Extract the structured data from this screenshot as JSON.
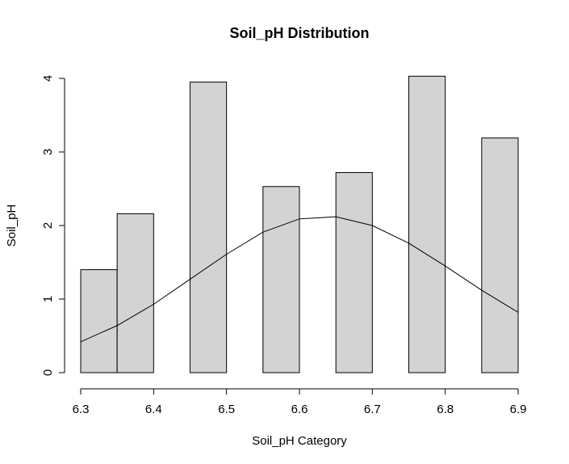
{
  "chart_data": {
    "type": "bar",
    "title": "Soil_pH Distribution",
    "xlabel": "Soil_pH Category",
    "ylabel": "Soil_pH",
    "xlim": [
      6.3,
      6.9
    ],
    "ylim": [
      0,
      4
    ],
    "x_ticks": [
      "6.3",
      "6.4",
      "6.5",
      "6.6",
      "6.7",
      "6.8",
      "6.9"
    ],
    "y_ticks": [
      "0",
      "1",
      "2",
      "3",
      "4"
    ],
    "bin_width": 0.05,
    "bars": [
      {
        "x0": 6.3,
        "x1": 6.35,
        "value": 1.4
      },
      {
        "x0": 6.35,
        "x1": 6.4,
        "value": 2.16
      },
      {
        "x0": 6.45,
        "x1": 6.5,
        "value": 3.95
      },
      {
        "x0": 6.55,
        "x1": 6.6,
        "value": 2.53
      },
      {
        "x0": 6.65,
        "x1": 6.7,
        "value": 2.72
      },
      {
        "x0": 6.75,
        "x1": 6.8,
        "value": 4.03
      },
      {
        "x0": 6.85,
        "x1": 6.9,
        "value": 3.19
      }
    ],
    "curve": {
      "x": [
        6.3,
        6.35,
        6.4,
        6.45,
        6.5,
        6.55,
        6.6,
        6.65,
        6.7,
        6.75,
        6.8,
        6.85,
        6.9
      ],
      "y": [
        0.42,
        0.64,
        0.93,
        1.27,
        1.61,
        1.91,
        2.09,
        2.12,
        2.0,
        1.76,
        1.45,
        1.12,
        0.82
      ]
    },
    "bar_color": "#d3d3d3",
    "grid": false
  }
}
